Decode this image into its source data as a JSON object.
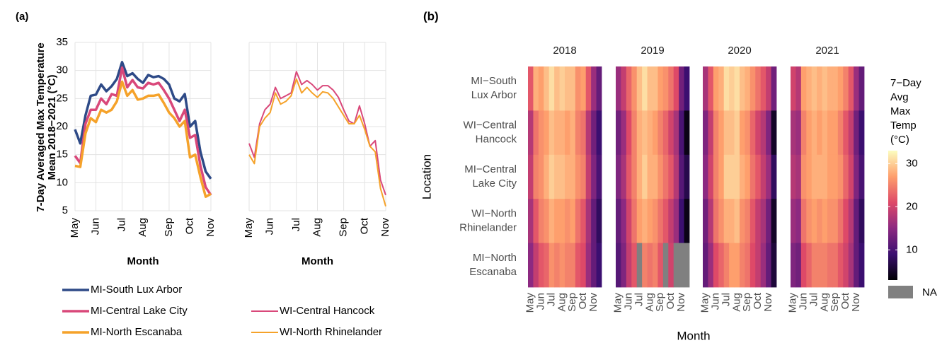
{
  "chart_data": [
    {
      "type": "line",
      "panel_label": "(a)",
      "y_label": [
        "7-Day Averaged Max Temperature",
        "Mean 2018−2021 (°C)"
      ],
      "x_label": "Month",
      "categories": [
        "May",
        null,
        null,
        null,
        "Jun",
        null,
        null,
        null,
        null,
        "Jul",
        null,
        null,
        null,
        "Aug",
        null,
        null,
        null,
        null,
        "Sep",
        null,
        null,
        null,
        "Oct",
        null,
        null,
        null,
        "Nov"
      ],
      "ylim": [
        5,
        35
      ],
      "yticks": [
        5,
        10,
        15,
        20,
        25,
        30,
        35
      ],
      "grid": true,
      "series": [
        {
          "name": "MI-South Lux Arbor",
          "color": "#2e4a87",
          "values": [
            19.5,
            17,
            22,
            25.5,
            25.7,
            27.5,
            26.3,
            27.2,
            28.5,
            31.5,
            29,
            29.5,
            28.5,
            27.8,
            29.2,
            28.8,
            29,
            28.5,
            27.5,
            25,
            24.5,
            25.8,
            20,
            21,
            15.5,
            12,
            10.7
          ]
        },
        {
          "name": "MI-Central Lake City",
          "color": "#d9487a",
          "values": [
            14.8,
            13.5,
            20.5,
            23,
            23,
            25,
            24,
            25.8,
            25.5,
            30.5,
            27,
            28.3,
            27,
            26.8,
            27.8,
            27.5,
            27.8,
            26.5,
            25,
            23,
            21,
            23,
            18,
            18.5,
            13,
            9.2,
            7.8
          ]
        },
        {
          "name": "MI-North Escanaba",
          "color": "#f5a22a",
          "values": [
            13,
            12.8,
            18.8,
            21.5,
            20.8,
            23,
            22.5,
            23,
            24.5,
            28,
            25.5,
            26.5,
            24.8,
            25,
            25.5,
            25.5,
            25.7,
            24.2,
            22.5,
            21.5,
            20,
            21,
            14.5,
            15,
            11,
            7.5,
            8
          ]
        }
      ]
    },
    {
      "type": "line",
      "x_label": "Month",
      "categories": [
        "May",
        null,
        null,
        null,
        "Jun",
        null,
        null,
        null,
        null,
        "Jul",
        null,
        null,
        null,
        "Aug",
        null,
        null,
        null,
        null,
        "Sep",
        null,
        null,
        null,
        "Oct",
        null,
        null,
        null,
        "Nov"
      ],
      "ylim": [
        5,
        35
      ],
      "yticks": [
        5,
        10,
        15,
        20,
        25,
        30,
        35
      ],
      "grid": true,
      "series": [
        {
          "name": "WI-Central Hancock",
          "color": "#d9487a",
          "values": [
            17,
            14.5,
            20.5,
            23,
            24,
            27,
            25,
            25.5,
            26,
            29.8,
            27.5,
            28.2,
            27.5,
            26.5,
            27.3,
            27.3,
            26.5,
            25.2,
            23,
            21,
            20.5,
            23.7,
            20.5,
            16.5,
            17.5,
            10.5,
            7.8
          ]
        },
        {
          "name": "WI-North Rhinelander",
          "color": "#f5a22a",
          "values": [
            15,
            13.4,
            20,
            21.5,
            22.5,
            26,
            24,
            24.5,
            25.5,
            28.5,
            26,
            27,
            26,
            25.2,
            26.2,
            26,
            25,
            23.5,
            22,
            20.5,
            20.5,
            22,
            19.5,
            16.5,
            15.5,
            9,
            5.8
          ]
        }
      ]
    },
    {
      "type": "heatmap",
      "panel_label": "(b)",
      "x_label": "Month",
      "y_label": "Location",
      "facets": [
        "2018",
        "2019",
        "2020",
        "2021"
      ],
      "rows": [
        [
          "MI−South",
          "Lux Arbor"
        ],
        [
          "WI−Central",
          "Hancock"
        ],
        [
          "MI−Central",
          "Lake City"
        ],
        [
          "WI−North",
          "Rhinelander"
        ],
        [
          "MI−North",
          "Escanaba"
        ]
      ],
      "categories": [
        "May",
        null,
        "Jun",
        null,
        "Jul",
        null,
        "Aug",
        null,
        "Sep",
        null,
        "Oct",
        null,
        "Nov",
        null
      ],
      "legend_title": [
        "7−Day",
        "Avg",
        "Max",
        "Temp",
        "(°C)"
      ],
      "clim": [
        3,
        33
      ],
      "ticks": [
        10,
        20,
        30
      ],
      "colormap": [
        "#000004",
        "#3b0f70",
        "#8c2981",
        "#de4968",
        "#fe9f6d",
        "#fcfdbf"
      ],
      "na_color": "#808080",
      "na_label": "NA",
      "values": [
        [
          [
            22,
            28,
            27,
            29,
            31,
            29,
            30,
            29,
            29,
            26,
            27,
            22,
            16,
            12
          ],
          [
            18,
            24,
            26,
            27,
            29,
            28,
            28,
            27,
            28,
            25,
            24,
            18,
            13,
            9
          ],
          [
            19,
            25,
            26,
            28,
            30,
            29,
            29,
            28,
            28,
            26,
            25,
            19,
            14,
            10
          ],
          [
            17,
            22,
            25,
            26,
            28,
            27,
            27,
            26,
            27,
            24,
            22,
            17,
            12,
            8
          ],
          [
            15,
            19,
            22,
            23,
            26,
            25,
            26,
            25,
            25,
            22,
            21,
            16,
            12,
            9
          ]
        ],
        [
          [
            16,
            19,
            23,
            26,
            29,
            31,
            29,
            29,
            27,
            26,
            24,
            21,
            13,
            9
          ],
          [
            13,
            16,
            21,
            25,
            28,
            29,
            28,
            27,
            25,
            23,
            20,
            17,
            10,
            4
          ],
          [
            14,
            17,
            22,
            25,
            28,
            30,
            28,
            28,
            26,
            24,
            22,
            18,
            11,
            7
          ],
          [
            12,
            15,
            20,
            24,
            27,
            28,
            27,
            26,
            24,
            22,
            19,
            16,
            9,
            4
          ],
          [
            11,
            14,
            19,
            22,
            null,
            25,
            24,
            25,
            22,
            null,
            20,
            null,
            null,
            null
          ]
        ],
        [
          [
            17,
            22,
            27,
            28,
            31,
            30,
            31,
            29,
            28,
            26,
            24,
            22,
            19,
            13
          ],
          [
            14,
            19,
            25,
            27,
            29,
            29,
            30,
            27,
            26,
            23,
            20,
            18,
            14,
            5
          ],
          [
            15,
            20,
            25,
            27,
            30,
            30,
            30,
            28,
            27,
            24,
            22,
            19,
            16,
            8
          ],
          [
            13,
            18,
            24,
            26,
            28,
            28,
            29,
            26,
            25,
            22,
            19,
            17,
            13,
            5
          ],
          [
            12,
            16,
            21,
            23,
            25,
            27,
            27,
            25,
            24,
            21,
            19,
            16,
            12,
            6
          ]
        ],
        [
          [
            20,
            18,
            27,
            28,
            29,
            28,
            29,
            28,
            28,
            27,
            25,
            22,
            16,
            12
          ],
          [
            17,
            16,
            25,
            27,
            28,
            27,
            28,
            27,
            27,
            25,
            22,
            19,
            13,
            9
          ],
          [
            18,
            17,
            26,
            27,
            28,
            28,
            28,
            27,
            27,
            26,
            23,
            20,
            14,
            10
          ],
          [
            16,
            15,
            24,
            26,
            27,
            26,
            27,
            26,
            26,
            24,
            21,
            18,
            12,
            8
          ],
          [
            14,
            13,
            21,
            23,
            25,
            25,
            25,
            24,
            24,
            22,
            20,
            17,
            12,
            9
          ]
        ]
      ]
    }
  ]
}
